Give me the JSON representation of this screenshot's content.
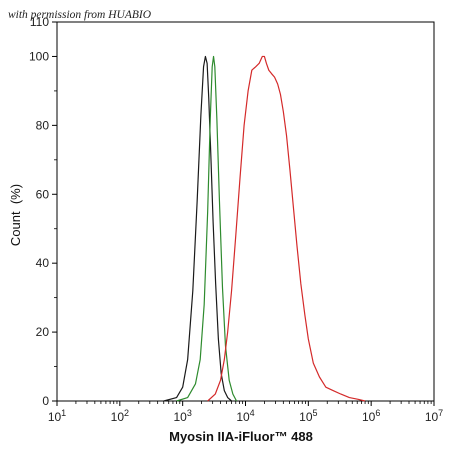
{
  "watermark": "with permission from HUABIO",
  "chart_data": {
    "type": "line",
    "title": "",
    "xlabel": "Myosin IIA-iFluor™ 488",
    "ylabel": "Count  (%)",
    "xscale": "log",
    "xlim": [
      10,
      10000000
    ],
    "ylim": [
      0,
      110
    ],
    "x_ticks": [
      {
        "value": 10,
        "base": "10",
        "exp": "1"
      },
      {
        "value": 100,
        "base": "10",
        "exp": "2"
      },
      {
        "value": 1000,
        "base": "10",
        "exp": "3"
      },
      {
        "value": 10000,
        "base": "10",
        "exp": "4"
      },
      {
        "value": 100000,
        "base": "10",
        "exp": "5"
      },
      {
        "value": 1000000,
        "base": "10",
        "exp": "6"
      },
      {
        "value": 10000000,
        "base": "10",
        "exp": "7"
      }
    ],
    "y_ticks": [
      {
        "value": 0,
        "label": "0"
      },
      {
        "value": 20,
        "label": "20"
      },
      {
        "value": 40,
        "label": "40"
      },
      {
        "value": 60,
        "label": "60"
      },
      {
        "value": 80,
        "label": "80"
      },
      {
        "value": 100,
        "label": "100"
      },
      {
        "value": 110,
        "label": "110"
      }
    ],
    "grid": false,
    "series": [
      {
        "color": "#1a1a1a",
        "x": [
          500,
          800,
          1000,
          1200,
          1450,
          1700,
          1950,
          2150,
          2300,
          2450,
          2600,
          2800,
          3050,
          3350,
          3700,
          4100,
          4600,
          5200,
          6000
        ],
        "y": [
          0,
          1,
          4,
          12,
          32,
          58,
          83,
          97,
          100,
          98,
          88,
          72,
          52,
          34,
          18,
          8,
          3,
          1,
          0
        ]
      },
      {
        "color": "#2e8b2e",
        "x": [
          800,
          1200,
          1600,
          1900,
          2200,
          2500,
          2750,
          2950,
          3100,
          3250,
          3500,
          3850,
          4300,
          4800,
          5500,
          6300,
          7200
        ],
        "y": [
          0,
          1,
          5,
          12,
          28,
          55,
          82,
          97,
          100,
          97,
          82,
          58,
          33,
          16,
          6,
          2,
          0
        ]
      },
      {
        "color": "#d42a2a",
        "x": [
          2500,
          3300,
          4000,
          4600,
          5200,
          6000,
          7000,
          8200,
          9500,
          11000,
          12600,
          14500,
          16500,
          18500,
          20000,
          21500,
          23500,
          26000,
          29000,
          32500,
          36000,
          40000,
          45000,
          51000,
          58000,
          66000,
          76000,
          88000,
          100000,
          120000,
          150000,
          190000,
          250000,
          330000,
          450000,
          620000,
          800000
        ],
        "y": [
          0,
          2,
          6,
          12,
          20,
          32,
          48,
          65,
          80,
          90,
          96,
          97,
          98,
          100,
          100,
          98,
          96,
          95,
          94,
          92,
          89,
          84,
          77,
          67,
          56,
          45,
          34,
          25,
          18,
          11,
          7,
          4,
          3,
          2,
          1,
          0.5,
          0
        ]
      }
    ]
  }
}
